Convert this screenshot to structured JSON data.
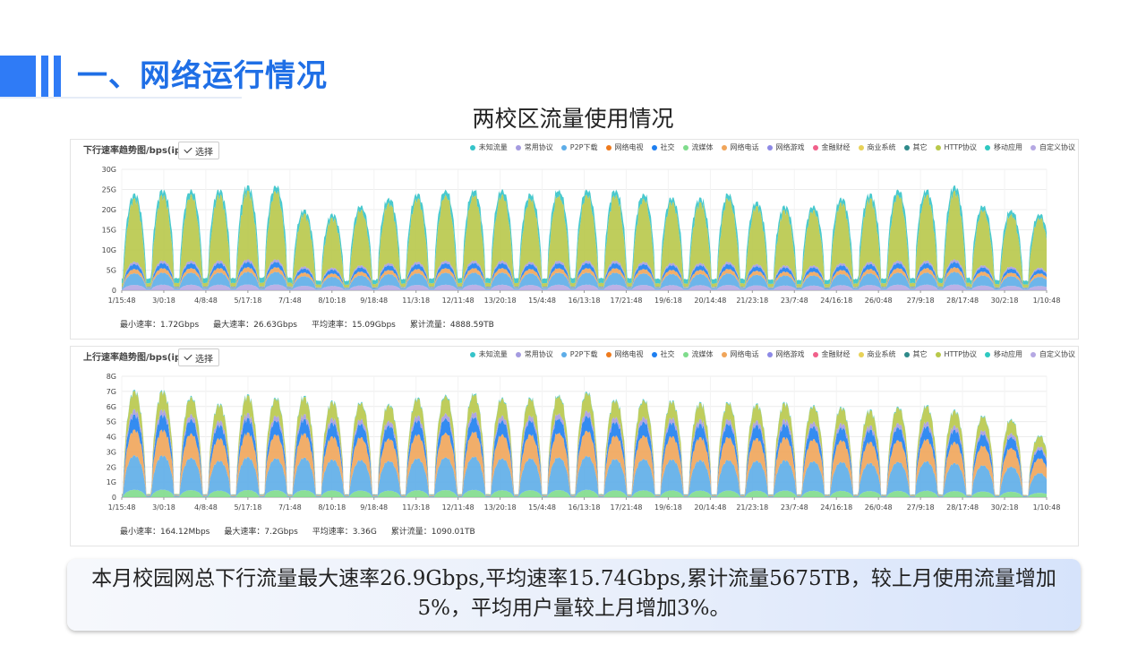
{
  "header": {
    "title": "一、网络运行情况"
  },
  "chart_heading": "两校区流量使用情况",
  "summary": {
    "text": "本月校园网总下行流量最大速率26.9Gbps,平均速率15.74Gbps,累计流量5675TB，较上月使用流量增加5%，平均用户量较上月增加3%。"
  },
  "legend": [
    {
      "label": "未知流量",
      "color": "#35c3c9"
    },
    {
      "label": "常用协议",
      "color": "#a59be0"
    },
    {
      "label": "P2P下载",
      "color": "#5dade8"
    },
    {
      "label": "网络电视",
      "color": "#ee7a1d"
    },
    {
      "label": "社交",
      "color": "#1e7ff0"
    },
    {
      "label": "流媒体",
      "color": "#7fdc8c"
    },
    {
      "label": "网络电话",
      "color": "#f0a55a"
    },
    {
      "label": "网络游戏",
      "color": "#8d89e6"
    },
    {
      "label": "金融财经",
      "color": "#f0608a"
    },
    {
      "label": "商业系统",
      "color": "#e8d258"
    },
    {
      "label": "其它",
      "color": "#2e8a8a"
    },
    {
      "label": "HTTP协议",
      "color": "#b8c84a"
    },
    {
      "label": "移动应用",
      "color": "#2ec8c0"
    },
    {
      "label": "自定义协议",
      "color": "#b5a8e3"
    }
  ],
  "select_label": "选择",
  "chart_data": [
    {
      "type": "area",
      "stacked": true,
      "title": "下行速率趋势图/bps(ip",
      "y_ticks": [
        "0",
        "5G",
        "10G",
        "15G",
        "20G",
        "25G",
        "30G"
      ],
      "ylim": [
        0,
        30
      ],
      "x_ticks": [
        "1/15:48",
        "3/0:18",
        "4/8:48",
        "5/17:18",
        "7/1:48",
        "8/10:18",
        "9/18:48",
        "11/3:18",
        "12/11:48",
        "13/20:18",
        "15/4:48",
        "16/13:18",
        "17/21:48",
        "19/6:18",
        "20/14:48",
        "21/23:18",
        "23/7:48",
        "24/16:18",
        "26/0:48",
        "27/9:18",
        "28/17:48",
        "30/2:18",
        "1/10:48"
      ],
      "series_order": [
        "自定义协议",
        "P2P下载",
        "网络电话",
        "社交",
        "常用协议",
        "HTTP协议",
        "未知流量"
      ],
      "daily_peak_total_G": [
        24,
        25,
        25,
        25,
        26,
        26,
        20,
        19,
        21,
        23,
        24,
        25,
        25,
        25,
        24,
        25,
        25,
        25,
        24,
        23,
        23,
        24,
        22,
        21,
        21,
        23,
        24,
        25,
        25,
        26,
        21,
        20,
        19
      ],
      "stats": [
        "最小速率：1.72Gbps",
        "最大速率：26.63Gbps",
        "平均速率：15.09Gbps",
        "累计流量：4888.59TB"
      ]
    },
    {
      "type": "area",
      "stacked": true,
      "title": "上行速率趋势图/bps(ip",
      "y_ticks": [
        "0",
        "1G",
        "2G",
        "3G",
        "4G",
        "5G",
        "6G",
        "7G",
        "8G"
      ],
      "ylim": [
        0,
        8
      ],
      "x_ticks": [
        "1/15:48",
        "3/0:18",
        "4/8:48",
        "5/17:18",
        "7/1:48",
        "8/10:18",
        "9/18:48",
        "11/3:18",
        "12/11:48",
        "13/20:18",
        "15/4:48",
        "16/13:18",
        "17/21:48",
        "19/6:18",
        "20/14:48",
        "21/23:18",
        "23/7:48",
        "24/16:18",
        "26/0:48",
        "27/9:18",
        "28/17:48",
        "30/2:18",
        "1/10:48"
      ],
      "series_order": [
        "流媒体",
        "P2P下载",
        "网络电话",
        "社交",
        "常用协议",
        "HTTP协议",
        "未知流量"
      ],
      "daily_peak_total_G": [
        7.1,
        7.1,
        6.7,
        6.2,
        6.8,
        6.6,
        6.7,
        6.4,
        6.3,
        6.2,
        6.6,
        6.8,
        6.9,
        6.6,
        6.6,
        6.8,
        7.0,
        6.5,
        6.5,
        6.4,
        6.3,
        6.3,
        6.2,
        6.3,
        6.1,
        6.0,
        5.8,
        6.0,
        6.1,
        5.8,
        5.4,
        5.2,
        4.1
      ],
      "stats": [
        "最小速率：164.12Mbps",
        "最大速率：7.2Gbps",
        "平均速率：3.36G",
        "累计流量：1090.01TB"
      ]
    }
  ]
}
